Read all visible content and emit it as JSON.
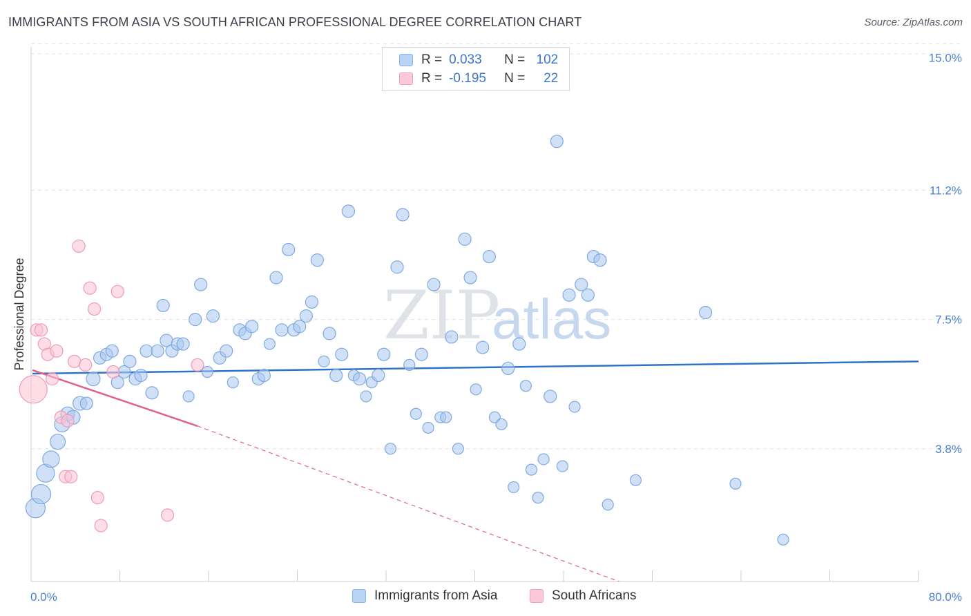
{
  "title": "IMMIGRANTS FROM ASIA VS SOUTH AFRICAN PROFESSIONAL DEGREE CORRELATION CHART",
  "source": "Source: ZipAtlas.com",
  "watermark": {
    "zip": "ZIP",
    "atlas": "atlas"
  },
  "legend": {
    "r_label": "R =",
    "n_label": "N =",
    "rows": [
      {
        "r": "0.033",
        "n": "102",
        "color": "#b8d3f4",
        "border": "#8ab4ea"
      },
      {
        "r": "-0.195",
        "n": "22",
        "color": "#fcc9d8",
        "border": "#f0a0b8"
      }
    ]
  },
  "bottom_legend": [
    {
      "label": "Immigrants from Asia",
      "color": "#b8d3f4",
      "border": "#8ab4ea"
    },
    {
      "label": "South Africans",
      "color": "#fcc9d8",
      "border": "#f0a0b8"
    }
  ],
  "chart_data": {
    "type": "scatter",
    "title": "IMMIGRANTS FROM ASIA VS SOUTH AFRICAN PROFESSIONAL DEGREE CORRELATION CHART",
    "xlabel": "",
    "ylabel": "Professional Degree",
    "xlim": [
      0,
      80
    ],
    "ylim": [
      0,
      15.5
    ],
    "x_tick_labels": [
      {
        "value": 0,
        "label": "0.0%"
      },
      {
        "value": 80,
        "label": "80.0%"
      }
    ],
    "y_tick_labels": [
      {
        "value": 3.8,
        "label": "3.8%"
      },
      {
        "value": 7.5,
        "label": "7.5%"
      },
      {
        "value": 11.2,
        "label": "11.2%"
      },
      {
        "value": 15.0,
        "label": "15.0%"
      }
    ],
    "grid": "horizontal dashed",
    "series": [
      {
        "name": "Immigrants from Asia",
        "color": "#a9c9f0",
        "edge": "#7fa9e0",
        "trend": {
          "x": [
            0,
            80
          ],
          "y": [
            5.95,
            6.3
          ],
          "color": "#2f72c9"
        },
        "points": [
          [
            0.4,
            2.1,
            14
          ],
          [
            0.9,
            2.5,
            14
          ],
          [
            1.3,
            3.1,
            13
          ],
          [
            1.8,
            3.5,
            12
          ],
          [
            2.4,
            4.0,
            11
          ],
          [
            2.8,
            4.5,
            11
          ],
          [
            3.3,
            4.8,
            10
          ],
          [
            3.8,
            4.7,
            10
          ],
          [
            4.4,
            5.1,
            10
          ],
          [
            5.0,
            5.1,
            9
          ],
          [
            5.6,
            5.8,
            10
          ],
          [
            6.2,
            6.4,
            9
          ],
          [
            6.8,
            6.5,
            9
          ],
          [
            7.3,
            6.6,
            9
          ],
          [
            7.8,
            5.7,
            9
          ],
          [
            8.4,
            6.0,
            9
          ],
          [
            8.9,
            6.3,
            9
          ],
          [
            9.4,
            5.8,
            9
          ],
          [
            9.9,
            5.9,
            9
          ],
          [
            10.4,
            6.6,
            9
          ],
          [
            10.9,
            5.4,
            9
          ],
          [
            11.4,
            6.6,
            9
          ],
          [
            11.9,
            7.9,
            9
          ],
          [
            12.2,
            6.9,
            9
          ],
          [
            12.7,
            6.6,
            9
          ],
          [
            13.2,
            6.8,
            9
          ],
          [
            13.7,
            6.8,
            9
          ],
          [
            14.2,
            5.3,
            8
          ],
          [
            14.8,
            7.5,
            9
          ],
          [
            15.3,
            8.5,
            9
          ],
          [
            15.9,
            6.0,
            8
          ],
          [
            16.4,
            7.6,
            9
          ],
          [
            17.0,
            6.4,
            9
          ],
          [
            17.6,
            6.6,
            9
          ],
          [
            18.2,
            5.7,
            8
          ],
          [
            18.8,
            7.2,
            9
          ],
          [
            19.3,
            7.1,
            9
          ],
          [
            19.9,
            7.3,
            9
          ],
          [
            20.5,
            5.8,
            9
          ],
          [
            21.0,
            5.9,
            9
          ],
          [
            21.5,
            6.8,
            8
          ],
          [
            22.1,
            8.7,
            9
          ],
          [
            22.6,
            7.2,
            9
          ],
          [
            23.2,
            9.5,
            9
          ],
          [
            23.7,
            7.2,
            9
          ],
          [
            24.2,
            7.3,
            9
          ],
          [
            24.8,
            7.6,
            9
          ],
          [
            25.3,
            8.0,
            9
          ],
          [
            25.8,
            9.2,
            9
          ],
          [
            26.4,
            6.3,
            8
          ],
          [
            26.9,
            7.1,
            9
          ],
          [
            27.5,
            5.9,
            9
          ],
          [
            28.0,
            6.5,
            9
          ],
          [
            28.6,
            10.6,
            9
          ],
          [
            29.1,
            5.9,
            8
          ],
          [
            29.6,
            5.8,
            9
          ],
          [
            30.2,
            5.3,
            8
          ],
          [
            30.7,
            5.7,
            8
          ],
          [
            31.3,
            5.9,
            9
          ],
          [
            31.8,
            6.5,
            9
          ],
          [
            32.4,
            3.8,
            8
          ],
          [
            33.0,
            9.0,
            9
          ],
          [
            33.5,
            10.5,
            9
          ],
          [
            34.1,
            6.2,
            8
          ],
          [
            34.7,
            4.8,
            8
          ],
          [
            35.2,
            6.5,
            9
          ],
          [
            35.8,
            4.4,
            8
          ],
          [
            36.3,
            8.5,
            9
          ],
          [
            36.9,
            4.7,
            8
          ],
          [
            37.4,
            4.7,
            8
          ],
          [
            37.9,
            7.0,
            9
          ],
          [
            38.5,
            3.8,
            8
          ],
          [
            39.1,
            9.8,
            9
          ],
          [
            39.6,
            8.7,
            9
          ],
          [
            40.1,
            5.5,
            8
          ],
          [
            40.7,
            6.7,
            9
          ],
          [
            41.3,
            9.3,
            9
          ],
          [
            41.8,
            4.7,
            8
          ],
          [
            42.4,
            4.5,
            8
          ],
          [
            43.0,
            6.1,
            9
          ],
          [
            43.5,
            2.7,
            8
          ],
          [
            44.0,
            6.8,
            9
          ],
          [
            44.6,
            5.6,
            8
          ],
          [
            45.1,
            3.2,
            8
          ],
          [
            45.7,
            2.4,
            8
          ],
          [
            46.2,
            3.5,
            8
          ],
          [
            46.8,
            5.3,
            9
          ],
          [
            47.4,
            12.6,
            9
          ],
          [
            47.9,
            3.3,
            8
          ],
          [
            48.5,
            8.2,
            9
          ],
          [
            49.0,
            5.0,
            8
          ],
          [
            49.6,
            8.5,
            9
          ],
          [
            50.2,
            8.2,
            9
          ],
          [
            50.7,
            9.3,
            9
          ],
          [
            51.3,
            9.2,
            9
          ],
          [
            52.0,
            2.2,
            8
          ],
          [
            54.5,
            2.9,
            8
          ],
          [
            60.8,
            7.7,
            9
          ],
          [
            63.5,
            2.8,
            8
          ],
          [
            67.8,
            1.2,
            8
          ]
        ]
      },
      {
        "name": "South Africans",
        "color": "#fbc3d3",
        "edge": "#ee9ab4",
        "trend": {
          "x": [
            0,
            15
          ],
          "y": [
            6.05,
            4.45
          ],
          "dashed_to": [
            53,
            0.0
          ],
          "color": "#e0608a"
        },
        "points": [
          [
            0.2,
            5.5,
            20
          ],
          [
            0.5,
            7.2,
            9
          ],
          [
            0.9,
            7.2,
            9
          ],
          [
            1.2,
            6.8,
            9
          ],
          [
            1.5,
            6.5,
            9
          ],
          [
            1.9,
            5.8,
            9
          ],
          [
            2.3,
            6.6,
            9
          ],
          [
            2.7,
            4.7,
            9
          ],
          [
            3.1,
            3.0,
            9
          ],
          [
            3.3,
            4.6,
            9
          ],
          [
            3.6,
            3.0,
            9
          ],
          [
            3.9,
            6.3,
            9
          ],
          [
            4.3,
            9.6,
            9
          ],
          [
            4.9,
            6.2,
            9
          ],
          [
            5.3,
            8.4,
            9
          ],
          [
            5.7,
            7.8,
            9
          ],
          [
            6.0,
            2.4,
            9
          ],
          [
            6.3,
            1.6,
            9
          ],
          [
            7.4,
            6.0,
            9
          ],
          [
            7.8,
            8.3,
            9
          ],
          [
            12.3,
            1.9,
            9
          ],
          [
            15.0,
            6.2,
            9
          ]
        ]
      }
    ]
  }
}
